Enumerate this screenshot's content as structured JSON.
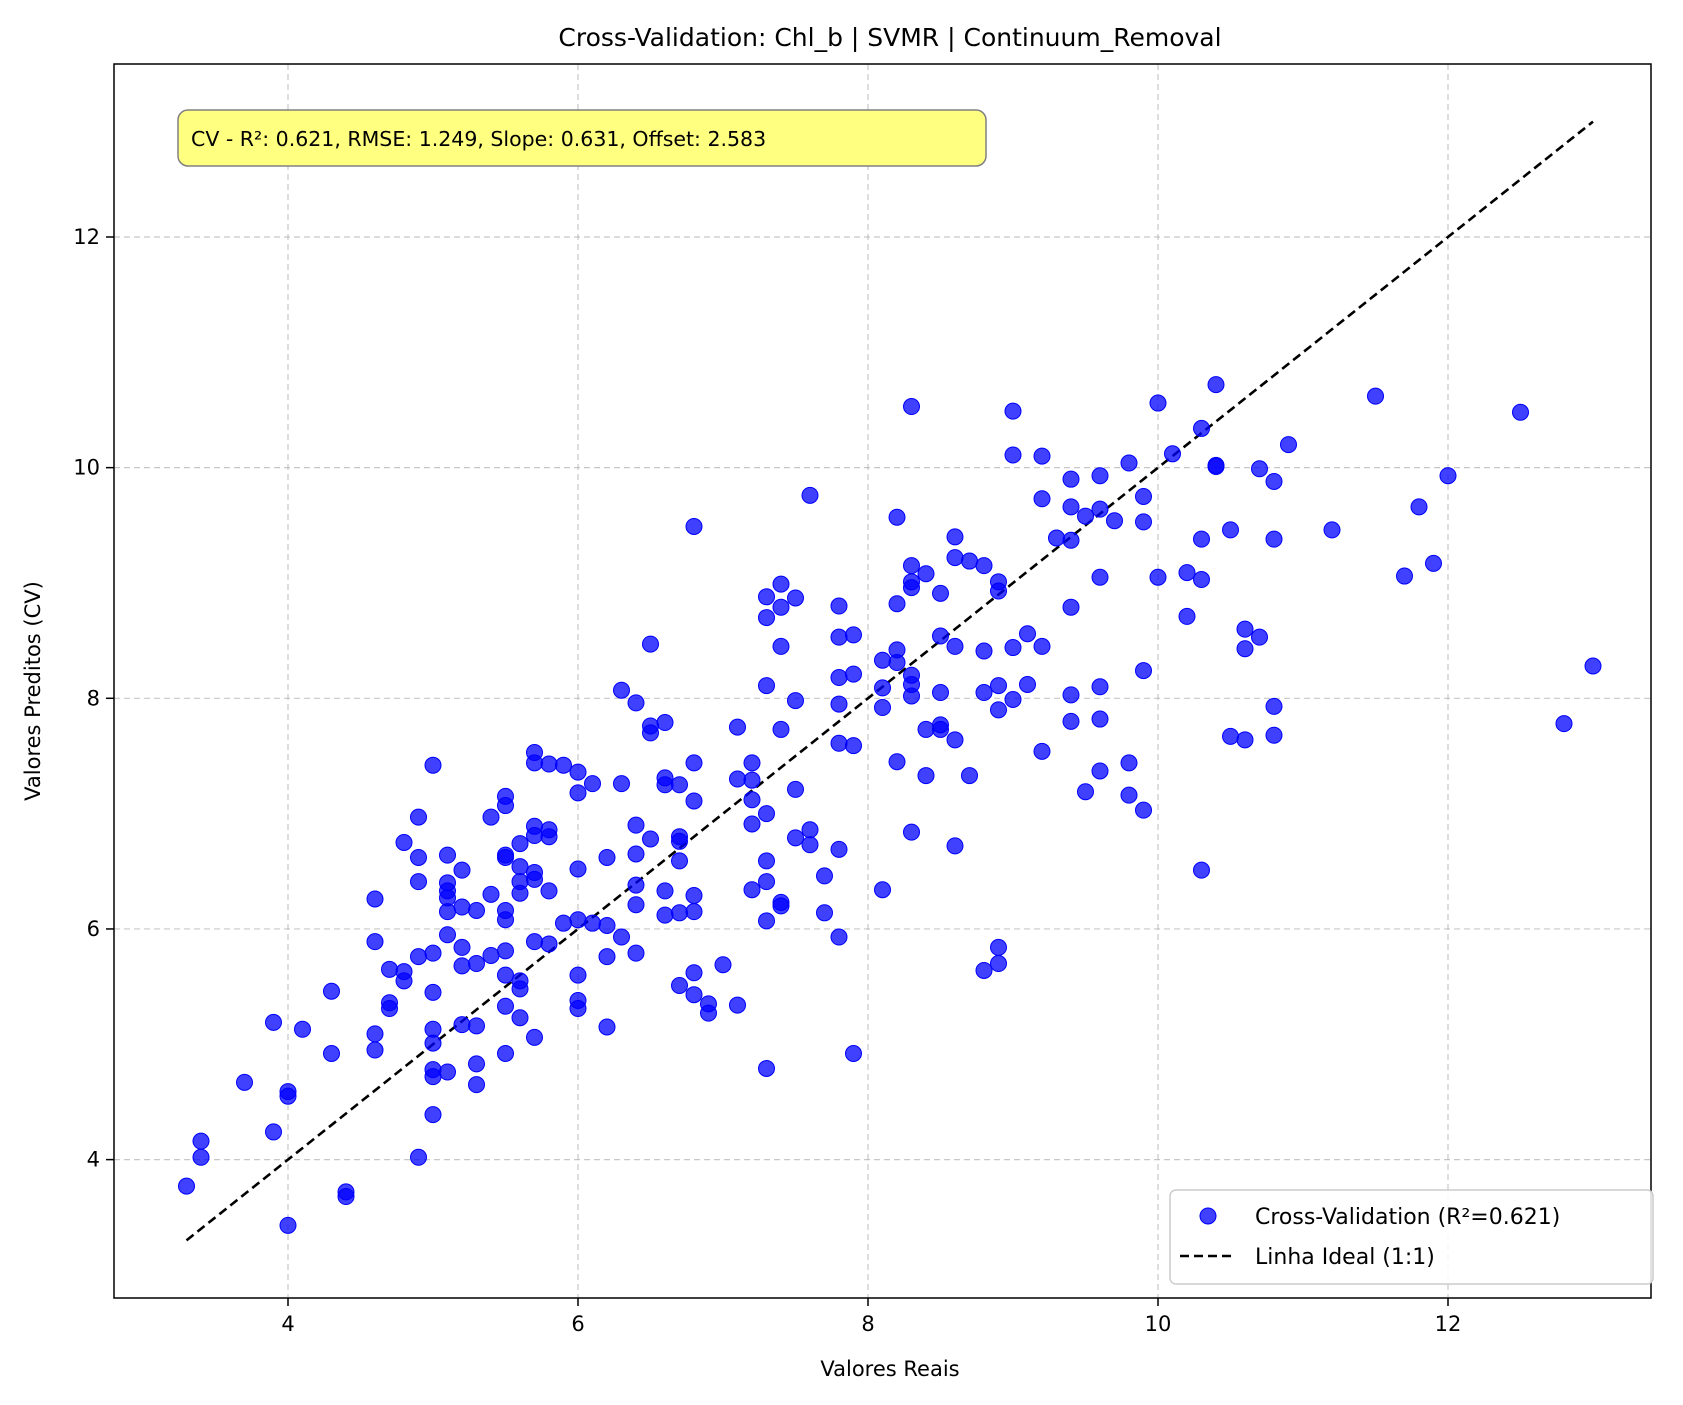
{
  "chart_data": {
    "type": "scatter",
    "title": "Cross-Validation: Chl_b | SVMR | Continuum_Removal",
    "xlabel": "Valores Reais",
    "ylabel": "Valores Preditos (CV)",
    "xlim": [
      2.8,
      13.4
    ],
    "ylim": [
      2.8,
      13.5
    ],
    "xticks": [
      4,
      6,
      8,
      10,
      12
    ],
    "yticks": [
      4,
      6,
      8,
      10,
      12
    ],
    "grid": true,
    "annotation": "CV - R²: 0.621, RMSE: 1.249, Slope: 0.631, Offset: 2.583",
    "legend_position": "bottom-right",
    "colors": {
      "points": "#0000ff",
      "ideal_line": "#000000",
      "annotation_box": "#ffff80"
    },
    "series": [
      {
        "name": "Cross-Validation (R²=0.621)",
        "kind": "scatter",
        "points": [
          [
            3.3,
            3.77
          ],
          [
            3.4,
            4.02
          ],
          [
            3.4,
            4.16
          ],
          [
            3.7,
            4.67
          ],
          [
            3.9,
            4.24
          ],
          [
            3.9,
            5.19
          ],
          [
            4.0,
            4.55
          ],
          [
            4.0,
            4.59
          ],
          [
            4.0,
            3.43
          ],
          [
            4.1,
            5.13
          ],
          [
            4.3,
            4.92
          ],
          [
            4.3,
            5.46
          ],
          [
            4.4,
            3.72
          ],
          [
            4.4,
            3.68
          ],
          [
            4.6,
            6.26
          ],
          [
            4.6,
            5.89
          ],
          [
            4.6,
            5.09
          ],
          [
            4.6,
            4.95
          ],
          [
            4.7,
            5.65
          ],
          [
            4.7,
            5.36
          ],
          [
            4.7,
            5.31
          ],
          [
            4.8,
            6.75
          ],
          [
            4.8,
            5.63
          ],
          [
            4.8,
            5.55
          ],
          [
            4.9,
            6.97
          ],
          [
            4.9,
            6.62
          ],
          [
            4.9,
            6.41
          ],
          [
            4.9,
            5.76
          ],
          [
            4.9,
            4.02
          ],
          [
            5.0,
            7.42
          ],
          [
            5.0,
            5.79
          ],
          [
            5.0,
            5.45
          ],
          [
            5.0,
            5.13
          ],
          [
            5.0,
            5.01
          ],
          [
            5.0,
            4.78
          ],
          [
            5.0,
            4.72
          ],
          [
            5.0,
            4.39
          ],
          [
            5.1,
            6.64
          ],
          [
            5.1,
            6.4
          ],
          [
            5.1,
            6.33
          ],
          [
            5.1,
            6.27
          ],
          [
            5.1,
            6.15
          ],
          [
            5.1,
            5.95
          ],
          [
            5.1,
            4.76
          ],
          [
            5.2,
            6.51
          ],
          [
            5.2,
            6.19
          ],
          [
            5.2,
            5.84
          ],
          [
            5.2,
            5.68
          ],
          [
            5.2,
            5.17
          ],
          [
            5.3,
            6.16
          ],
          [
            5.3,
            5.7
          ],
          [
            5.3,
            5.16
          ],
          [
            5.3,
            4.83
          ],
          [
            5.3,
            4.65
          ],
          [
            5.4,
            6.97
          ],
          [
            5.4,
            6.3
          ],
          [
            5.4,
            5.77
          ],
          [
            5.5,
            7.15
          ],
          [
            5.5,
            7.07
          ],
          [
            5.5,
            6.64
          ],
          [
            5.5,
            6.62
          ],
          [
            5.5,
            6.16
          ],
          [
            5.5,
            6.08
          ],
          [
            5.5,
            5.81
          ],
          [
            5.5,
            5.6
          ],
          [
            5.5,
            5.33
          ],
          [
            5.5,
            4.92
          ],
          [
            5.6,
            6.74
          ],
          [
            5.6,
            6.54
          ],
          [
            5.6,
            6.41
          ],
          [
            5.6,
            6.31
          ],
          [
            5.6,
            5.55
          ],
          [
            5.6,
            5.48
          ],
          [
            5.6,
            5.23
          ],
          [
            5.7,
            7.53
          ],
          [
            5.7,
            7.44
          ],
          [
            5.7,
            6.89
          ],
          [
            5.7,
            6.81
          ],
          [
            5.7,
            6.49
          ],
          [
            5.7,
            6.43
          ],
          [
            5.7,
            5.89
          ],
          [
            5.7,
            5.06
          ],
          [
            5.8,
            7.43
          ],
          [
            5.8,
            6.86
          ],
          [
            5.8,
            6.8
          ],
          [
            5.8,
            6.33
          ],
          [
            5.8,
            5.87
          ],
          [
            5.9,
            7.42
          ],
          [
            5.9,
            6.05
          ],
          [
            6.0,
            7.36
          ],
          [
            6.0,
            7.18
          ],
          [
            6.0,
            6.52
          ],
          [
            6.0,
            6.08
          ],
          [
            6.0,
            5.6
          ],
          [
            6.0,
            5.38
          ],
          [
            6.0,
            5.31
          ],
          [
            6.1,
            7.26
          ],
          [
            6.1,
            6.05
          ],
          [
            6.2,
            6.62
          ],
          [
            6.2,
            6.03
          ],
          [
            6.2,
            5.76
          ],
          [
            6.2,
            5.15
          ],
          [
            6.3,
            8.07
          ],
          [
            6.3,
            7.26
          ],
          [
            6.3,
            5.93
          ],
          [
            6.4,
            7.96
          ],
          [
            6.4,
            6.9
          ],
          [
            6.4,
            6.65
          ],
          [
            6.4,
            6.38
          ],
          [
            6.4,
            6.21
          ],
          [
            6.4,
            5.79
          ],
          [
            6.5,
            8.47
          ],
          [
            6.5,
            7.76
          ],
          [
            6.5,
            7.7
          ],
          [
            6.5,
            6.78
          ],
          [
            6.6,
            7.79
          ],
          [
            6.6,
            7.31
          ],
          [
            6.6,
            7.25
          ],
          [
            6.6,
            6.33
          ],
          [
            6.6,
            6.12
          ],
          [
            6.7,
            7.25
          ],
          [
            6.7,
            6.8
          ],
          [
            6.7,
            6.76
          ],
          [
            6.7,
            6.59
          ],
          [
            6.7,
            6.14
          ],
          [
            6.7,
            5.51
          ],
          [
            6.8,
            9.49
          ],
          [
            6.8,
            7.44
          ],
          [
            6.8,
            7.11
          ],
          [
            6.8,
            6.29
          ],
          [
            6.8,
            6.15
          ],
          [
            6.8,
            5.62
          ],
          [
            6.8,
            5.43
          ],
          [
            6.9,
            5.35
          ],
          [
            6.9,
            5.27
          ],
          [
            7.0,
            5.69
          ],
          [
            7.1,
            7.75
          ],
          [
            7.1,
            7.3
          ],
          [
            7.1,
            5.34
          ],
          [
            7.2,
            7.44
          ],
          [
            7.2,
            7.29
          ],
          [
            7.2,
            7.12
          ],
          [
            7.2,
            6.91
          ],
          [
            7.2,
            6.34
          ],
          [
            7.3,
            8.88
          ],
          [
            7.3,
            8.7
          ],
          [
            7.3,
            8.11
          ],
          [
            7.3,
            7.0
          ],
          [
            7.3,
            6.59
          ],
          [
            7.3,
            6.41
          ],
          [
            7.3,
            6.07
          ],
          [
            7.3,
            4.79
          ],
          [
            7.4,
            8.99
          ],
          [
            7.4,
            8.79
          ],
          [
            7.4,
            8.45
          ],
          [
            7.4,
            7.73
          ],
          [
            7.4,
            6.23
          ],
          [
            7.4,
            6.2
          ],
          [
            7.5,
            8.87
          ],
          [
            7.5,
            7.98
          ],
          [
            7.5,
            7.21
          ],
          [
            7.5,
            6.79
          ],
          [
            7.6,
            9.76
          ],
          [
            7.6,
            6.86
          ],
          [
            7.6,
            6.73
          ],
          [
            7.7,
            6.46
          ],
          [
            7.7,
            6.14
          ],
          [
            7.8,
            8.8
          ],
          [
            7.8,
            8.53
          ],
          [
            7.8,
            8.18
          ],
          [
            7.8,
            7.95
          ],
          [
            7.8,
            7.61
          ],
          [
            7.8,
            6.69
          ],
          [
            7.8,
            5.93
          ],
          [
            7.9,
            8.55
          ],
          [
            7.9,
            8.21
          ],
          [
            7.9,
            7.59
          ],
          [
            7.9,
            4.92
          ],
          [
            8.1,
            8.33
          ],
          [
            8.1,
            8.09
          ],
          [
            8.1,
            7.92
          ],
          [
            8.1,
            6.34
          ],
          [
            8.2,
            9.57
          ],
          [
            8.2,
            8.82
          ],
          [
            8.2,
            8.42
          ],
          [
            8.2,
            8.31
          ],
          [
            8.2,
            7.45
          ],
          [
            8.3,
            10.53
          ],
          [
            8.3,
            9.15
          ],
          [
            8.3,
            9.01
          ],
          [
            8.3,
            8.96
          ],
          [
            8.3,
            8.2
          ],
          [
            8.3,
            8.12
          ],
          [
            8.3,
            8.02
          ],
          [
            8.3,
            6.84
          ],
          [
            8.4,
            9.08
          ],
          [
            8.4,
            7.73
          ],
          [
            8.4,
            7.33
          ],
          [
            8.5,
            8.91
          ],
          [
            8.5,
            8.54
          ],
          [
            8.5,
            8.05
          ],
          [
            8.5,
            7.77
          ],
          [
            8.5,
            7.73
          ],
          [
            8.6,
            9.4
          ],
          [
            8.6,
            9.22
          ],
          [
            8.6,
            8.45
          ],
          [
            8.6,
            7.64
          ],
          [
            8.6,
            6.72
          ],
          [
            8.7,
            9.19
          ],
          [
            8.7,
            7.33
          ],
          [
            8.8,
            9.15
          ],
          [
            8.8,
            8.41
          ],
          [
            8.8,
            8.05
          ],
          [
            8.8,
            5.64
          ],
          [
            8.9,
            9.01
          ],
          [
            8.9,
            8.93
          ],
          [
            8.9,
            8.11
          ],
          [
            8.9,
            7.9
          ],
          [
            8.9,
            5.84
          ],
          [
            8.9,
            5.7
          ],
          [
            9.0,
            10.49
          ],
          [
            9.0,
            10.11
          ],
          [
            9.0,
            8.44
          ],
          [
            9.0,
            7.99
          ],
          [
            9.1,
            8.56
          ],
          [
            9.1,
            8.12
          ],
          [
            9.2,
            10.1
          ],
          [
            9.2,
            9.73
          ],
          [
            9.2,
            8.45
          ],
          [
            9.2,
            7.54
          ],
          [
            9.3,
            9.39
          ],
          [
            9.4,
            9.9
          ],
          [
            9.4,
            9.66
          ],
          [
            9.4,
            9.37
          ],
          [
            9.4,
            8.79
          ],
          [
            9.4,
            8.03
          ],
          [
            9.4,
            7.8
          ],
          [
            9.5,
            9.58
          ],
          [
            9.5,
            7.19
          ],
          [
            9.6,
            9.93
          ],
          [
            9.6,
            9.64
          ],
          [
            9.6,
            9.05
          ],
          [
            9.6,
            8.1
          ],
          [
            9.6,
            7.82
          ],
          [
            9.6,
            7.37
          ],
          [
            9.7,
            9.54
          ],
          [
            9.8,
            10.04
          ],
          [
            9.8,
            7.44
          ],
          [
            9.8,
            7.16
          ],
          [
            9.9,
            9.75
          ],
          [
            9.9,
            9.53
          ],
          [
            9.9,
            8.24
          ],
          [
            9.9,
            7.03
          ],
          [
            10.0,
            10.56
          ],
          [
            10.0,
            9.05
          ],
          [
            10.1,
            10.12
          ],
          [
            10.2,
            9.09
          ],
          [
            10.2,
            8.71
          ],
          [
            10.3,
            10.34
          ],
          [
            10.3,
            9.38
          ],
          [
            10.3,
            9.03
          ],
          [
            10.3,
            6.51
          ],
          [
            10.4,
            10.72
          ],
          [
            10.4,
            10.02
          ],
          [
            10.4,
            10.01
          ],
          [
            10.5,
            9.46
          ],
          [
            10.5,
            7.67
          ],
          [
            10.6,
            8.6
          ],
          [
            10.6,
            8.43
          ],
          [
            10.6,
            7.64
          ],
          [
            10.7,
            9.99
          ],
          [
            10.7,
            8.53
          ],
          [
            10.8,
            9.88
          ],
          [
            10.8,
            9.38
          ],
          [
            10.8,
            7.93
          ],
          [
            10.8,
            7.68
          ],
          [
            10.9,
            10.2
          ],
          [
            11.2,
            9.46
          ],
          [
            11.5,
            10.62
          ],
          [
            11.7,
            9.06
          ],
          [
            11.8,
            9.66
          ],
          [
            11.9,
            9.17
          ],
          [
            12.0,
            9.93
          ],
          [
            12.5,
            10.48
          ],
          [
            12.8,
            7.78
          ],
          [
            13.0,
            8.28
          ]
        ]
      },
      {
        "name": "Linha Ideal (1:1)",
        "kind": "line",
        "x": [
          3.3,
          13.0
        ],
        "y": [
          3.3,
          13.0
        ]
      }
    ]
  }
}
